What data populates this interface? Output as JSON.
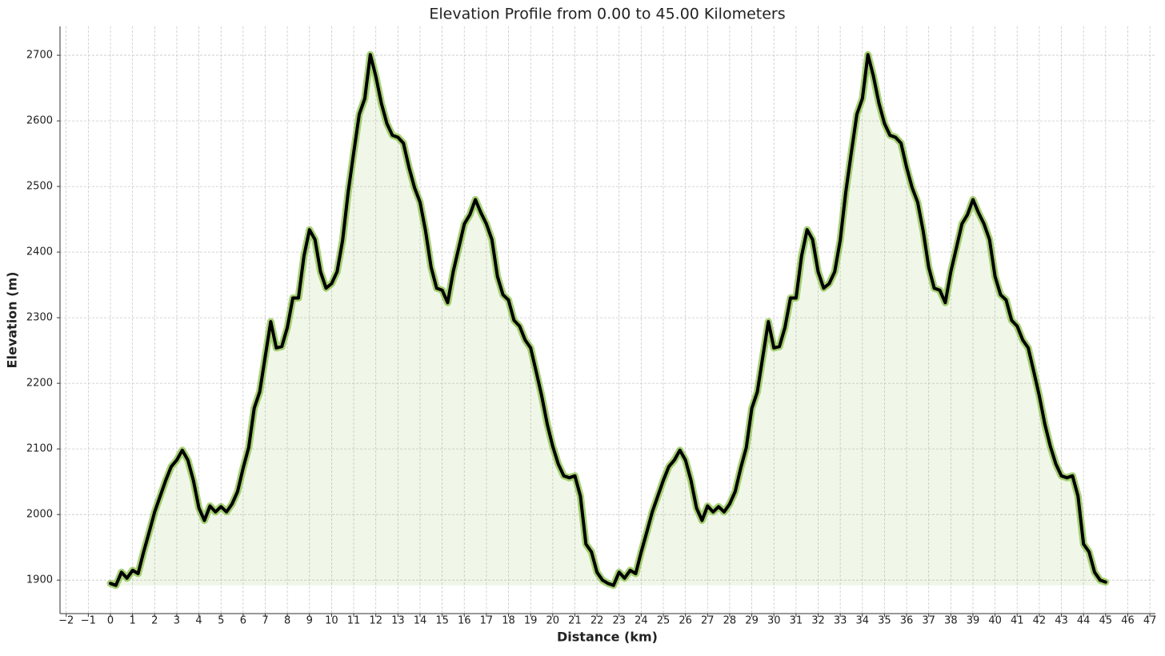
{
  "chart_data": {
    "type": "area-line",
    "title": "Elevation Profile from 0.00 to 45.00 Kilometers",
    "x_label": "Distance (km)",
    "y_label": "Elevation (m)",
    "color": "#000000",
    "halo_color": "#8bc34a",
    "x": [
      0,
      0.25,
      0.5,
      0.75,
      1,
      1.25,
      1.5,
      1.75,
      2,
      2.25,
      2.5,
      2.75,
      3,
      3.25,
      3.5,
      3.75,
      4,
      4.25,
      4.5,
      4.75,
      5,
      5.25,
      5.5,
      5.75,
      6,
      6.25,
      6.5,
      6.75,
      7,
      7.25,
      7.5,
      7.75,
      8,
      8.25,
      8.5,
      8.75,
      9,
      9.25,
      9.5,
      9.75,
      10,
      10.25,
      10.5,
      10.75,
      11,
      11.25,
      11.5,
      11.75,
      12,
      12.25,
      12.5,
      12.75,
      13,
      13.25,
      13.5,
      13.75,
      14,
      14.25,
      14.5,
      14.75,
      15,
      15.25,
      15.5,
      15.75,
      16,
      16.25,
      16.5,
      16.75,
      17,
      17.25,
      17.5,
      17.75,
      18,
      18.25,
      18.5,
      18.75,
      19,
      19.25,
      19.5,
      19.75,
      20,
      20.25,
      20.5,
      20.75,
      21,
      21.25,
      21.5,
      21.75,
      22,
      22.25,
      22.5,
      22.75,
      23,
      23.25,
      23.5,
      23.75,
      24,
      24.25,
      24.5,
      24.75,
      25,
      25.25,
      25.5,
      25.75,
      26,
      26.25,
      26.5,
      26.75,
      27,
      27.25,
      27.5,
      27.75,
      28,
      28.25,
      28.5,
      28.75,
      29,
      29.25,
      29.5,
      29.75,
      30,
      30.25,
      30.5,
      30.75,
      31,
      31.25,
      31.5,
      31.75,
      32,
      32.25,
      32.5,
      32.75,
      33,
      33.25,
      33.5,
      33.75,
      34,
      34.25,
      34.5,
      34.75,
      35,
      35.25,
      35.5,
      35.75,
      36,
      36.25,
      36.5,
      36.75,
      37,
      37.25,
      37.5,
      37.75,
      38,
      38.25,
      38.5,
      38.75,
      39,
      39.25,
      39.5,
      39.75,
      40,
      40.25,
      40.5,
      40.75,
      41,
      41.25,
      41.5,
      41.75,
      42,
      42.25,
      42.5,
      42.75,
      43,
      43.25,
      43.5,
      43.75,
      44,
      44.25,
      44.5,
      44.75,
      45
    ],
    "values": [
      1895,
      1892,
      1912,
      1903,
      1915,
      1910,
      1943,
      1973,
      2004,
      2028,
      2052,
      2073,
      2083,
      2098,
      2083,
      2052,
      2010,
      1991,
      2013,
      2004,
      2012,
      2004,
      2016,
      2035,
      2071,
      2102,
      2162,
      2187,
      2241,
      2294,
      2254,
      2256,
      2285,
      2330,
      2330,
      2394,
      2434,
      2419,
      2370,
      2345,
      2352,
      2370,
      2418,
      2491,
      2552,
      2610,
      2634,
      2701,
      2668,
      2627,
      2596,
      2578,
      2575,
      2566,
      2529,
      2498,
      2476,
      2432,
      2377,
      2345,
      2342,
      2323,
      2370,
      2406,
      2443,
      2457,
      2480,
      2460,
      2443,
      2419,
      2363,
      2335,
      2327,
      2296,
      2287,
      2266,
      2254,
      2218,
      2181,
      2138,
      2104,
      2077,
      2059,
      2056,
      2059,
      2028,
      1955,
      1943,
      1912,
      1900,
      1895,
      1892,
      1912,
      1903,
      1915,
      1910,
      1943,
      1973,
      2004,
      2028,
      2052,
      2073,
      2083,
      2098,
      2083,
      2052,
      2010,
      1991,
      2013,
      2004,
      2012,
      2004,
      2016,
      2035,
      2071,
      2102,
      2162,
      2187,
      2241,
      2294,
      2254,
      2256,
      2285,
      2330,
      2330,
      2394,
      2434,
      2419,
      2370,
      2345,
      2352,
      2370,
      2418,
      2491,
      2552,
      2610,
      2634,
      2701,
      2668,
      2627,
      2596,
      2578,
      2575,
      2566,
      2529,
      2498,
      2476,
      2432,
      2377,
      2345,
      2342,
      2323,
      2370,
      2406,
      2443,
      2457,
      2480,
      2460,
      2443,
      2419,
      2363,
      2335,
      2327,
      2296,
      2287,
      2266,
      2254,
      2218,
      2181,
      2138,
      2104,
      2077,
      2059,
      2056,
      2059,
      2028,
      1955,
      1943,
      1912,
      1900,
      1897
    ],
    "xlim": [
      -2.28,
      47.25
    ],
    "ylim": [
      1849,
      2744
    ],
    "xticks": [
      {
        "value": -2,
        "label": "−2"
      },
      {
        "value": -1,
        "label": "−1"
      },
      0,
      1,
      2,
      3,
      4,
      5,
      6,
      7,
      8,
      9,
      10,
      11,
      12,
      13,
      14,
      15,
      16,
      17,
      18,
      19,
      20,
      21,
      22,
      23,
      24,
      25,
      26,
      27,
      28,
      29,
      30,
      31,
      32,
      33,
      34,
      35,
      36,
      37,
      38,
      39,
      40,
      41,
      42,
      43,
      44,
      45,
      46,
      47
    ],
    "yticks": [
      1900,
      2000,
      2100,
      2200,
      2300,
      2400,
      2500,
      2600,
      2700
    ],
    "grid": true
  }
}
